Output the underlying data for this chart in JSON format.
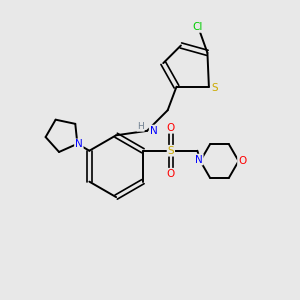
{
  "background_color": "#e8e8e8",
  "atom_colors": {
    "C": "#000000",
    "N": "#0000ff",
    "O": "#ff0000",
    "S": "#ccaa00",
    "Cl": "#00cc00",
    "H": "#708090"
  },
  "figsize": [
    3.0,
    3.0
  ],
  "dpi": 100,
  "xlim": [
    0,
    10
  ],
  "ylim": [
    0,
    10
  ]
}
